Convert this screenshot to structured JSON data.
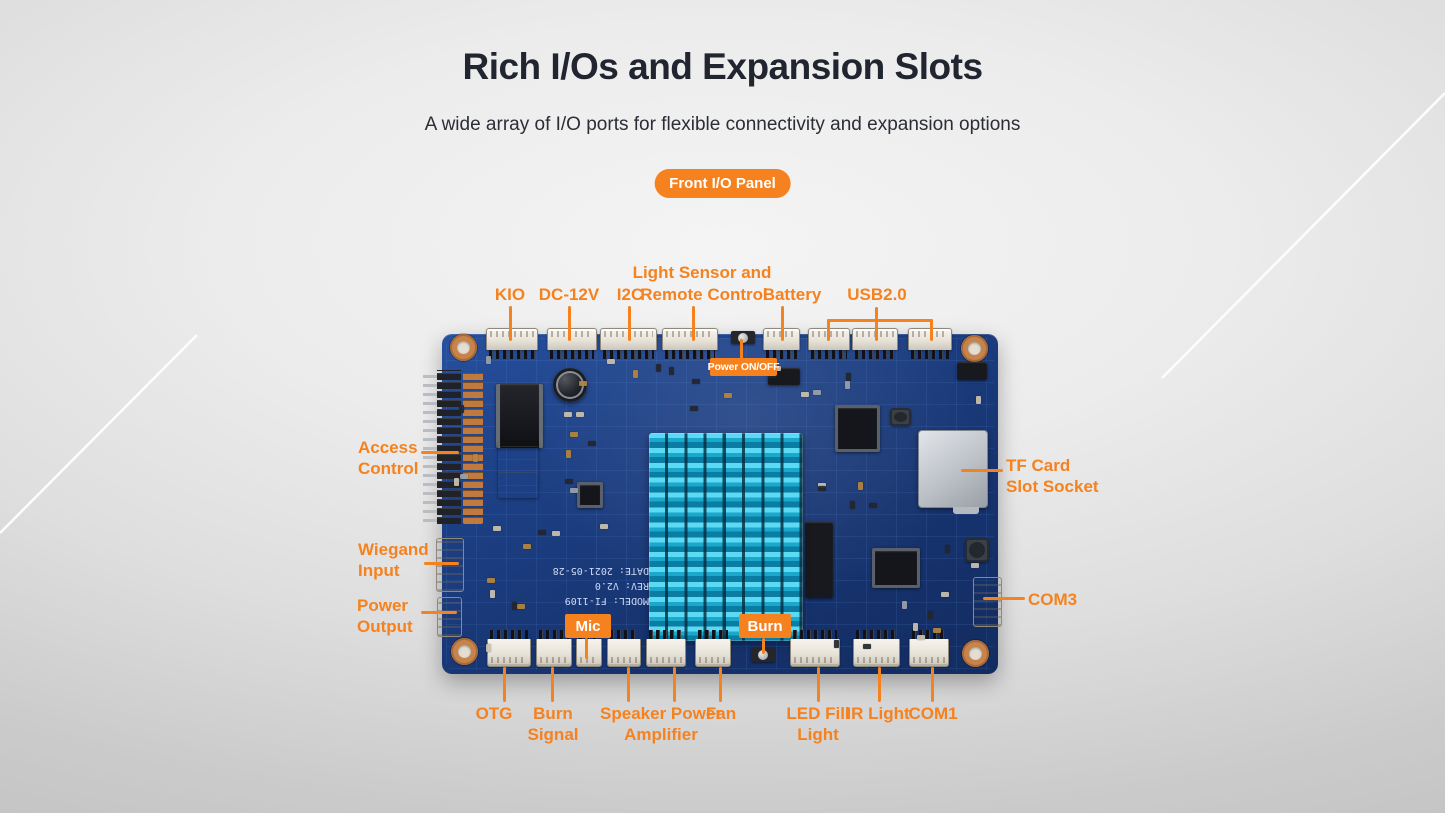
{
  "header": {
    "title": "Rich I/Os and Expansion Slots",
    "subtitle": "A wide array of I/O ports for flexible connectivity and expansion options",
    "panel_badge": "Front I/O Panel"
  },
  "colors": {
    "accent_orange": "#F5821F",
    "pcb_blue": "#1B3D80",
    "heatsink_cyan": "#2FB9DE",
    "title_dark": "#21252F"
  },
  "annotations": {
    "top": {
      "kio": "KIO",
      "dc12v": "DC-12V",
      "i2c": "I2C",
      "light_sensor_line1": "Light Sensor and",
      "light_sensor_line2": "Remote Control",
      "battery": "Battery",
      "usb20": "USB2.0",
      "power_onoff": "Power ON/OFF"
    },
    "left": {
      "access_line1": "Access",
      "access_line2": "Control",
      "wiegand_line1": "Wiegand",
      "wiegand_line2": "Input",
      "power_out_line1": "Power",
      "power_out_line2": "Output"
    },
    "right": {
      "tf_line1": "TF Card",
      "tf_line2": "Slot Socket",
      "com3": "COM3"
    },
    "bottom": {
      "otg": "OTG",
      "burn_signal_line1": "Burn",
      "burn_signal_line2": "Signal",
      "speaker_line1": "Speaker Power",
      "speaker_line2": "Amplifier",
      "fan": "Fan",
      "led_fill_line1": "LED Fill",
      "led_fill_line2": "Light",
      "ir_light": "IR Light",
      "com1": "COM1",
      "mic": "Mic",
      "burn": "Burn"
    }
  },
  "board": {
    "silkscreen": {
      "model": "MODEL: FI-1109",
      "rev": "REV: V2.0",
      "date": "DATE: 2021-05-28"
    }
  }
}
